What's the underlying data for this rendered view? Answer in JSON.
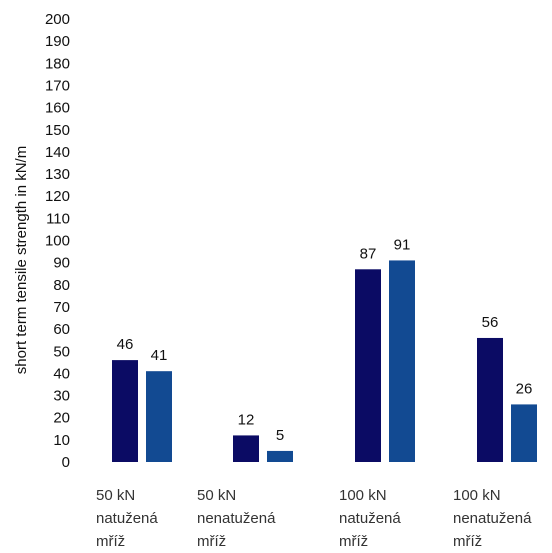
{
  "chart_data": {
    "type": "bar",
    "ylabel": "short term tensile strength in kN/m",
    "ylim": [
      0,
      200
    ],
    "ytick_step": 10,
    "grid": false,
    "legend": "none",
    "categories": [
      [
        "50 kN",
        "natužená",
        "mříž"
      ],
      [
        "50 kN",
        "nenatužená",
        "mříž"
      ],
      [
        "100 kN",
        "natužená",
        "mříž"
      ],
      [
        "100 kN",
        "nenatužená",
        "mříž"
      ]
    ],
    "series": [
      {
        "values": [
          46,
          12,
          87,
          56
        ],
        "color": "#0b0b64"
      },
      {
        "values": [
          41,
          5,
          91,
          26
        ],
        "color": "#124a92"
      }
    ]
  }
}
